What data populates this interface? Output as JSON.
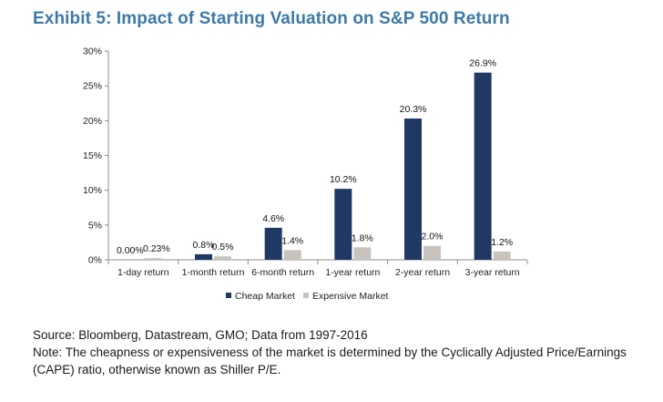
{
  "title": "Exhibit 5: Impact of Starting Valuation on S&P 500 Return",
  "chart_data": {
    "type": "bar",
    "categories": [
      "1-day return",
      "1-month return",
      "6-month return",
      "1-year return",
      "2-year return",
      "3-year return"
    ],
    "series": [
      {
        "name": "Cheap Market",
        "color": "#1f3864",
        "values": [
          0.0,
          0.8,
          4.6,
          10.2,
          20.3,
          26.9
        ],
        "labels": [
          "0.00%",
          "0.8%",
          "4.6%",
          "10.2%",
          "20.3%",
          "26.9%"
        ]
      },
      {
        "name": "Expensive Market",
        "color": "#c9c3bd",
        "values": [
          0.23,
          0.5,
          1.4,
          1.8,
          2.0,
          1.2
        ],
        "labels": [
          "0.23%",
          "0.5%",
          "1.4%",
          "1.8%",
          "2.0%",
          "1.2%"
        ]
      }
    ],
    "y_ticks": [
      0,
      5,
      10,
      15,
      20,
      25,
      30
    ],
    "y_tick_labels": [
      "0%",
      "5%",
      "10%",
      "15%",
      "20%",
      "25%",
      "30%"
    ],
    "ylim": [
      0,
      30
    ],
    "legend_position": "bottom-center",
    "grid": false
  },
  "footer": {
    "source": "Source:  Bloomberg, Datastream, GMO; Data from 1997-2016",
    "note_line1": "Note: The cheapness or expensiveness of the market is determined by the Cyclically Adjusted Price/Earnings",
    "note_line2": "(CAPE) ratio, otherwise known as Shiller P/E."
  }
}
